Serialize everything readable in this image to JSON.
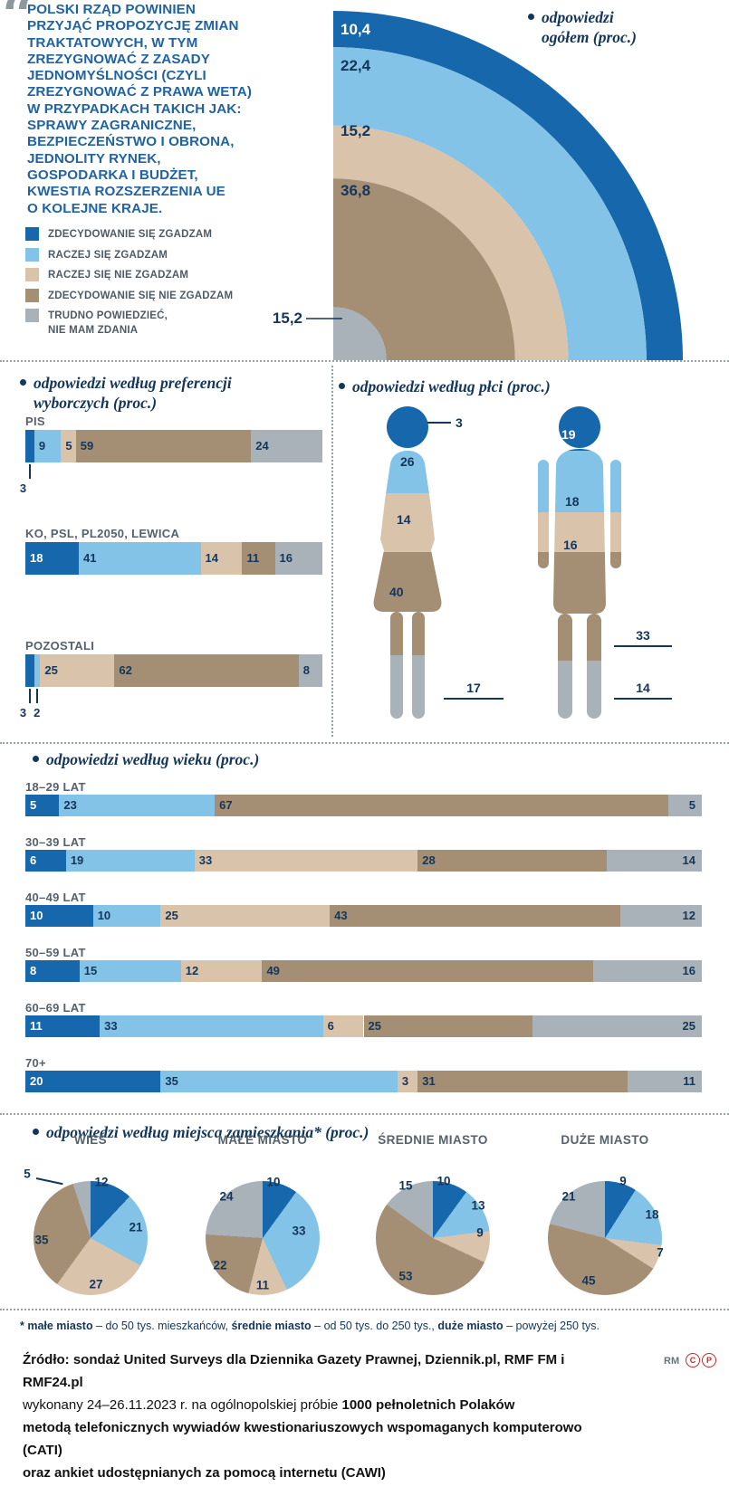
{
  "icons": {
    "quote_glyph": "“"
  },
  "colors": {
    "series": [
      "#1767ac",
      "#82c3e7",
      "#d9c4ab",
      "#a48e74",
      "#a9b2b8"
    ],
    "navy": "#14365a",
    "headline_blue": "#2063a2",
    "label_gray": "#55616b"
  },
  "headline": "POLSKI RZĄD POWINIEN\nPRZYJĄĆ PROPOZYCJĘ ZMIAN\nTRAKTATOWYCH, W TYM\nZREZYGNOWAĆ Z ZASADY\nJEDNOMYŚLNOŚCI (CZYLI\nZREZYGNOWAĆ Z PRAWA WETA)\nW PRZYPADKACH TAKICH JAK:\nSPRAWY ZAGRANICZNE,\nBEZPIECZEŃSTWO I OBRONA,\nJEDNOLITY RYNEK,\nGOSPODARKA I BUDŻET,\nKWESTIA ROZSZERZENIA UE\nO KOLEJNE KRAJE.",
  "legend": {
    "items": [
      {
        "label": "ZDECYDOWANIE SIĘ ZGADZAM",
        "color": "#1767ac"
      },
      {
        "label": "RACZEJ SIĘ ZGADZAM",
        "color": "#82c3e7"
      },
      {
        "label": "RACZEJ SIĘ NIE ZGADZAM",
        "color": "#d9c4ab"
      },
      {
        "label": "ZDECYDOWANIE SIĘ NIE ZGADZAM",
        "color": "#a48e74"
      },
      {
        "label": "TRUDNO POWIEDZIEĆ,\nNIE MAM ZDANIA",
        "color": "#a9b2b8"
      }
    ]
  },
  "chart_data": [
    {
      "type": "donut",
      "layout": "quarter-ring, outermost band = first category, legend top-right",
      "title": "odpowiedzi ogółem (proc.)",
      "categories": [
        "ZDECYDOWANIE SIĘ ZGADZAM",
        "RACZEJ SIĘ ZGADZAM",
        "RACZEJ SIĘ NIE ZGADZAM",
        "ZDECYDOWANIE SIĘ NIE ZGADZAM",
        "TRUDNO POWIEDZIEĆ, NIE MAM ZDANIA"
      ],
      "values": [
        10.4,
        22.4,
        15.2,
        36.8,
        15.2
      ],
      "value_labels": [
        "10,4",
        "22,4",
        "15,2",
        "36,8",
        "15,2"
      ]
    },
    {
      "type": "bar",
      "layout": "horizontal stacked bars",
      "title": "odpowiedzi według preferencji wyborczych (proc.)",
      "categories": [
        "ZDECYDOWANIE SIĘ ZGADZAM",
        "RACZEJ SIĘ ZGADZAM",
        "RACZEJ SIĘ NIE ZGADZAM",
        "ZDECYDOWANIE SIĘ NIE ZGADZAM",
        "TRUDNO POWIEDZIEĆ, NIE MAM ZDANIA"
      ],
      "groups": [
        {
          "label": "PIS",
          "values": [
            3,
            9,
            5,
            59,
            24
          ],
          "callout_segments": [
            0
          ]
        },
        {
          "label": "KO, PSL, PL2050, LEWICA",
          "values": [
            18,
            41,
            14,
            11,
            16
          ],
          "callout_segments": []
        },
        {
          "label": "POZOSTALI",
          "values": [
            3,
            2,
            25,
            62,
            8
          ],
          "callout_segments": [
            0,
            1
          ]
        }
      ]
    },
    {
      "type": "pictogram",
      "layout": "female and male silhouettes banded top-to-bottom in category order",
      "title": "odpowiedzi według płci (proc.)",
      "categories": [
        "ZDECYDOWANIE SIĘ ZGADZAM",
        "RACZEJ SIĘ ZGADZAM",
        "RACZEJ SIĘ NIE ZGADZAM",
        "ZDECYDOWANIE SIĘ NIE ZGADZAM",
        "TRUDNO POWIEDZIEĆ, NIE MAM ZDANIA"
      ],
      "groups": [
        {
          "label": "kobiety",
          "values": [
            3,
            26,
            14,
            40,
            17
          ]
        },
        {
          "label": "mężczyźni",
          "values": [
            19,
            18,
            16,
            33,
            14
          ]
        }
      ]
    },
    {
      "type": "bar",
      "layout": "horizontal stacked bars, full width",
      "title": "odpowiedzi według wieku (proc.)",
      "categories": [
        "ZDECYDOWANIE SIĘ ZGADZAM",
        "RACZEJ SIĘ ZGADZAM",
        "RACZEJ SIĘ NIE ZGADZAM",
        "ZDECYDOWANIE SIĘ NIE ZGADZAM",
        "TRUDNO POWIEDZIEĆ, NIE MAM ZDANIA"
      ],
      "groups": [
        {
          "label": "18–29 LAT",
          "values": [
            5,
            23,
            0,
            67,
            5
          ]
        },
        {
          "label": "30–39 LAT",
          "values": [
            6,
            19,
            33,
            28,
            14
          ]
        },
        {
          "label": "40–49 LAT",
          "values": [
            10,
            10,
            25,
            43,
            12
          ]
        },
        {
          "label": "50–59 LAT",
          "values": [
            8,
            15,
            12,
            49,
            16
          ]
        },
        {
          "label": "60–69 LAT",
          "values": [
            11,
            33,
            6,
            25,
            25
          ]
        },
        {
          "label": "70+",
          "values": [
            20,
            35,
            3,
            31,
            11
          ]
        }
      ]
    },
    {
      "type": "pie",
      "layout": "four pies, slices clockwise from 12 o'clock in category order",
      "title": "odpowiedzi według miejsca zamieszkania* (proc.)",
      "categories": [
        "ZDECYDOWANIE SIĘ ZGADZAM",
        "RACZEJ SIĘ ZGADZAM",
        "RACZEJ SIĘ NIE ZGADZAM",
        "ZDECYDOWANIE SIĘ NIE ZGADZAM",
        "TRUDNO POWIEDZIEĆ, NIE MAM ZDANIA"
      ],
      "pies": [
        {
          "label": "WIEŚ",
          "values": [
            12,
            21,
            27,
            35,
            5
          ]
        },
        {
          "label": "MAŁE MIASTO",
          "values": [
            10,
            33,
            11,
            22,
            24
          ]
        },
        {
          "label": "ŚREDNIE MIASTO",
          "values": [
            10,
            13,
            9,
            53,
            15
          ]
        },
        {
          "label": "DUŻE MIASTO",
          "values": [
            9,
            18,
            7,
            45,
            21
          ]
        }
      ]
    }
  ],
  "footnote_parts": [
    {
      "t": "* ",
      "b": true
    },
    {
      "t": "małe miasto",
      "b": true
    },
    {
      "t": " – do 50 tys. mieszkańców, ",
      "b": false
    },
    {
      "t": "średnie miasto",
      "b": true
    },
    {
      "t": " – od 50 tys. do 250 tys., ",
      "b": false
    },
    {
      "t": "duże miasto",
      "b": true
    },
    {
      "t": " – powyżej 250 tys.",
      "b": false
    }
  ],
  "source_parts": [
    {
      "t": "Źródło: sondaż United Surveys dla Dziennika Gazety Prawnej, Dziennik.pl, RMF FM i RMF24.pl\n",
      "b": true
    },
    {
      "t": "wykonany 24–26.11.2023 r. na ogólnopolskiej próbie ",
      "b": false
    },
    {
      "t": "1000 pełnoletnich Polaków\n",
      "b": true
    },
    {
      "t": "metodą telefonicznych wywiadów kwestionariuszowych wspomaganych komputerowo (CATI)\n",
      "b": true
    },
    {
      "t": "oraz ankiet udostępnianych za pomocą internetu (CAWI)",
      "b": true
    }
  ],
  "rm": {
    "label": "RM",
    "badges": [
      "C",
      "P"
    ]
  }
}
